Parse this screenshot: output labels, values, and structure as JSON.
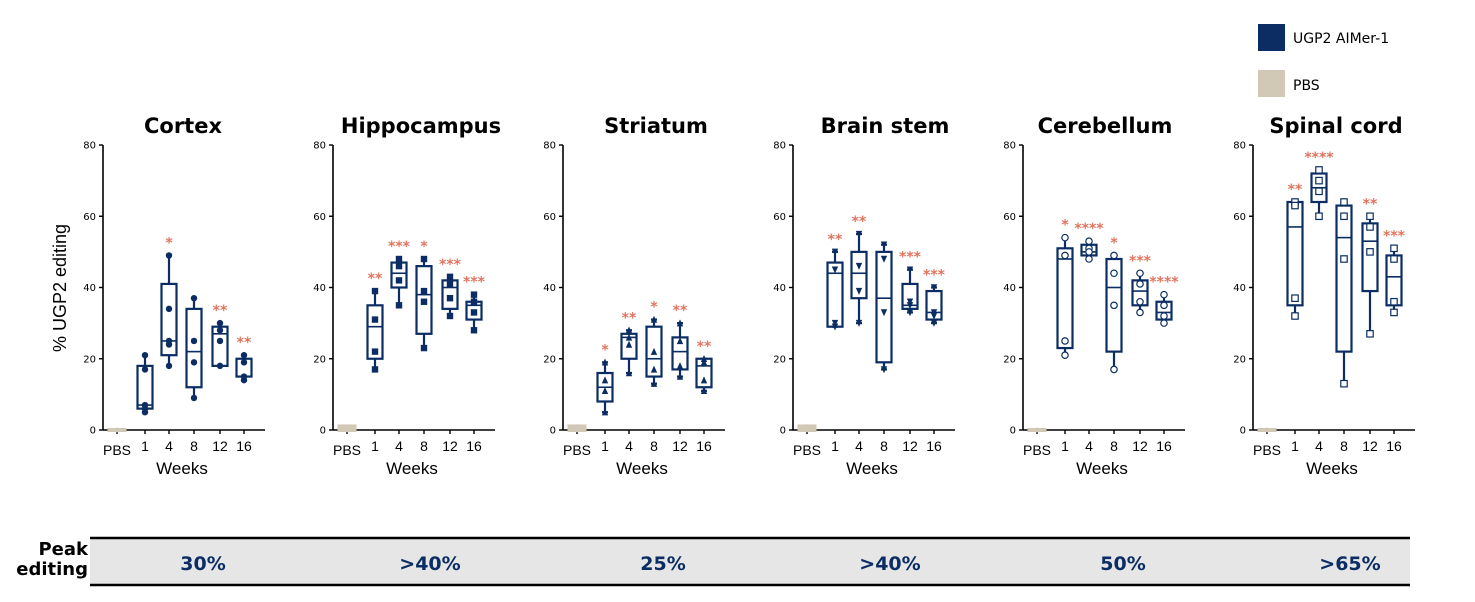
{
  "colors": {
    "aimer": "#0b2d63",
    "pbs": "#d2c8b6",
    "significance": "#e07560",
    "band": "#e6e6e6"
  },
  "legend": [
    {
      "label": "UGP2 AIMer-1",
      "color": "#0b2d63"
    },
    {
      "label": "PBS",
      "color": "#d2c8b6"
    }
  ],
  "peak": {
    "label_line1": "Peak",
    "label_line2": "editing",
    "values": [
      "30%",
      ">40%",
      "25%",
      ">40%",
      "50%",
      ">65%"
    ]
  },
  "chart_data": [
    {
      "type": "box",
      "title": "Cortex",
      "xlabel": "Weeks",
      "ylabel": "% UGP2 editing",
      "ylim": [
        0,
        80
      ],
      "yticks": [
        "0",
        "20",
        "40",
        "60",
        "80"
      ],
      "categories": [
        "PBS",
        "1",
        "4",
        "8",
        "12",
        "16"
      ],
      "marker": "circle-filled",
      "boxes": [
        {
          "min": 0,
          "q1": 0,
          "median": 0,
          "q3": 0,
          "max": 0,
          "points": [
            0,
            0
          ],
          "pbs": true
        },
        {
          "min": 5,
          "q1": 6,
          "median": 7,
          "q3": 18,
          "max": 21,
          "points": [
            17,
            7,
            6
          ]
        },
        {
          "min": 18,
          "q1": 21,
          "median": 25,
          "q3": 41,
          "max": 49,
          "points": [
            34,
            25,
            24
          ]
        },
        {
          "min": 9,
          "q1": 12,
          "median": 22,
          "q3": 34,
          "max": 37,
          "points": [
            25,
            19
          ]
        },
        {
          "min": 18,
          "q1": 18,
          "median": 27,
          "q3": 29,
          "max": 30,
          "points": [
            28,
            25
          ]
        },
        {
          "min": 14,
          "q1": 15,
          "median": 15,
          "q3": 20,
          "max": 21,
          "points": [
            19,
            15
          ]
        }
      ],
      "significance": [
        "",
        "",
        "*",
        "",
        "**",
        "**"
      ]
    },
    {
      "type": "box",
      "title": "Hippocampus",
      "xlabel": "Weeks",
      "ylim": [
        0,
        80
      ],
      "yticks": [
        "0",
        "20",
        "40",
        "60",
        "80"
      ],
      "categories": [
        "PBS",
        "1",
        "4",
        "8",
        "12",
        "16"
      ],
      "marker": "square-filled",
      "boxes": [
        {
          "min": 0,
          "q1": 0,
          "median": 0,
          "q3": 1,
          "max": 1,
          "points": [
            0,
            1
          ],
          "pbs": true
        },
        {
          "min": 17,
          "q1": 20,
          "median": 29,
          "q3": 35,
          "max": 39,
          "points": [
            31,
            22
          ]
        },
        {
          "min": 35,
          "q1": 40,
          "median": 44,
          "q3": 47,
          "max": 48,
          "points": [
            46,
            42
          ]
        },
        {
          "min": 23,
          "q1": 27,
          "median": 38,
          "q3": 46,
          "max": 48,
          "points": [
            39,
            36
          ]
        },
        {
          "min": 32,
          "q1": 34,
          "median": 40,
          "q3": 42,
          "max": 43,
          "points": [
            41,
            37
          ]
        },
        {
          "min": 28,
          "q1": 31,
          "median": 35,
          "q3": 36,
          "max": 38,
          "points": [
            36,
            33
          ]
        }
      ],
      "significance": [
        "",
        "**",
        "***",
        "*",
        "***",
        "***"
      ]
    },
    {
      "type": "box",
      "title": "Striatum",
      "xlabel": "Weeks",
      "ylim": [
        0,
        80
      ],
      "yticks": [
        "0",
        "20",
        "40",
        "60",
        "80"
      ],
      "categories": [
        "PBS",
        "1",
        "4",
        "8",
        "12",
        "16"
      ],
      "marker": "triangle-filled",
      "boxes": [
        {
          "min": 0,
          "q1": 0,
          "median": 0,
          "q3": 1,
          "max": 1,
          "points": [
            0,
            1
          ],
          "pbs": true
        },
        {
          "min": 5,
          "q1": 8,
          "median": 12,
          "q3": 16,
          "max": 19,
          "points": [
            14,
            11
          ]
        },
        {
          "min": 16,
          "q1": 20,
          "median": 26,
          "q3": 27,
          "max": 28,
          "points": [
            24,
            26
          ]
        },
        {
          "min": 13,
          "q1": 15,
          "median": 20,
          "q3": 29,
          "max": 31,
          "points": [
            22,
            17
          ]
        },
        {
          "min": 15,
          "q1": 17,
          "median": 22,
          "q3": 26,
          "max": 30,
          "points": [
            25,
            18
          ]
        },
        {
          "min": 11,
          "q1": 12,
          "median": 18,
          "q3": 20,
          "max": 20,
          "points": [
            19,
            14
          ]
        }
      ],
      "significance": [
        "",
        "*",
        "**",
        "*",
        "**",
        "**"
      ]
    },
    {
      "type": "box",
      "title": "Brain stem",
      "xlabel": "Weeks",
      "ylim": [
        0,
        80
      ],
      "yticks": [
        "0",
        "20",
        "40",
        "60",
        "80"
      ],
      "categories": [
        "PBS",
        "1",
        "4",
        "8",
        "12",
        "16"
      ],
      "marker": "triangle-down-filled",
      "boxes": [
        {
          "min": 0,
          "q1": 0,
          "median": 0,
          "q3": 1,
          "max": 1,
          "points": [
            0,
            1
          ],
          "pbs": true
        },
        {
          "min": 29,
          "q1": 29,
          "median": 44,
          "q3": 47,
          "max": 50,
          "points": [
            45,
            30
          ]
        },
        {
          "min": 30,
          "q1": 37,
          "median": 44,
          "q3": 50,
          "max": 55,
          "points": [
            46,
            39
          ]
        },
        {
          "min": 17,
          "q1": 19,
          "median": 37,
          "q3": 50,
          "max": 52,
          "points": [
            48,
            33
          ]
        },
        {
          "min": 33,
          "q1": 34,
          "median": 35,
          "q3": 41,
          "max": 45,
          "points": [
            36,
            35
          ]
        },
        {
          "min": 30,
          "q1": 31,
          "median": 33,
          "q3": 39,
          "max": 40,
          "points": [
            32,
            33
          ]
        }
      ],
      "significance": [
        "",
        "**",
        "**",
        "",
        "***",
        "***"
      ]
    },
    {
      "type": "box",
      "title": "Cerebellum",
      "xlabel": "Weeks",
      "ylim": [
        0,
        80
      ],
      "yticks": [
        "0",
        "20",
        "40",
        "60",
        "80"
      ],
      "categories": [
        "PBS",
        "1",
        "4",
        "8",
        "12",
        "16"
      ],
      "marker": "circle-open",
      "boxes": [
        {
          "min": 0,
          "q1": 0,
          "median": 0,
          "q3": 0,
          "max": 0,
          "points": [
            0,
            0
          ],
          "pbs": true
        },
        {
          "min": 21,
          "q1": 23,
          "median": 48,
          "q3": 51,
          "max": 54,
          "points": [
            49,
            25
          ]
        },
        {
          "min": 48,
          "q1": 49,
          "median": 50,
          "q3": 52,
          "max": 53,
          "points": [
            51,
            50
          ]
        },
        {
          "min": 17,
          "q1": 22,
          "median": 40,
          "q3": 48,
          "max": 49,
          "points": [
            44,
            35
          ]
        },
        {
          "min": 33,
          "q1": 35,
          "median": 39,
          "q3": 42,
          "max": 44,
          "points": [
            41,
            36
          ]
        },
        {
          "min": 30,
          "q1": 31,
          "median": 33,
          "q3": 36,
          "max": 38,
          "points": [
            35,
            32
          ]
        }
      ],
      "significance": [
        "",
        "*",
        "****",
        "*",
        "***",
        "****"
      ]
    },
    {
      "type": "box",
      "title": "Spinal cord",
      "xlabel": "Weeks",
      "ylim": [
        0,
        80
      ],
      "yticks": [
        "0",
        "20",
        "40",
        "60",
        "80"
      ],
      "categories": [
        "PBS",
        "1",
        "4",
        "8",
        "12",
        "16"
      ],
      "marker": "square-open",
      "boxes": [
        {
          "min": 0,
          "q1": 0,
          "median": 0,
          "q3": 0,
          "max": 0,
          "points": [
            0,
            0
          ],
          "pbs": true
        },
        {
          "min": 32,
          "q1": 35,
          "median": 57,
          "q3": 64,
          "max": 64,
          "points": [
            63,
            37
          ]
        },
        {
          "min": 60,
          "q1": 64,
          "median": 68,
          "q3": 72,
          "max": 73,
          "points": [
            70,
            67
          ]
        },
        {
          "min": 13,
          "q1": 22,
          "median": 54,
          "q3": 63,
          "max": 64,
          "points": [
            60,
            48
          ]
        },
        {
          "min": 27,
          "q1": 39,
          "median": 53,
          "q3": 58,
          "max": 60,
          "points": [
            57,
            50
          ]
        },
        {
          "min": 33,
          "q1": 35,
          "median": 43,
          "q3": 49,
          "max": 51,
          "points": [
            48,
            36
          ]
        }
      ],
      "significance": [
        "",
        "**",
        "****",
        "",
        "**",
        "***"
      ]
    }
  ]
}
